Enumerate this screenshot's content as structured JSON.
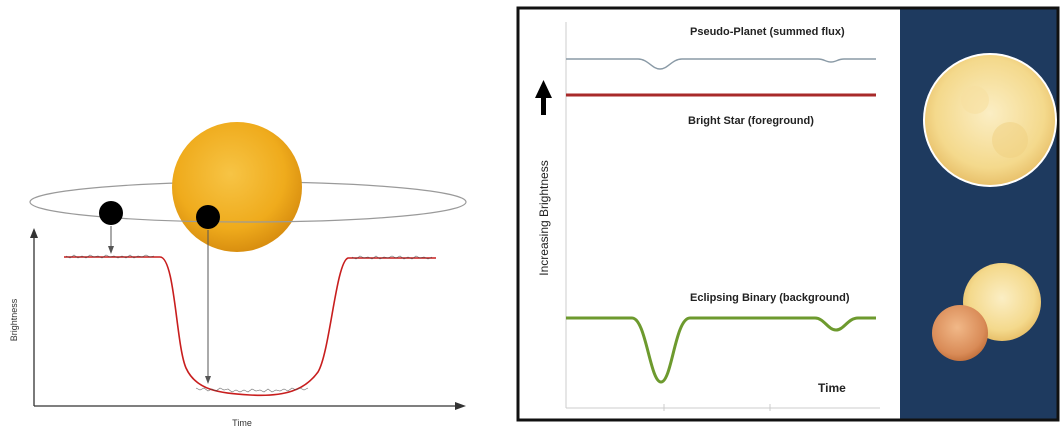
{
  "left_diagram": {
    "y_axis_label": "Brightness",
    "x_axis_label": "Time",
    "colors": {
      "star": "#f2b020",
      "planet": "#000000",
      "light_curve": "#c81e1e",
      "axis": "#333333"
    }
  },
  "right_diagram": {
    "y_axis_label": "Increasing Brightness",
    "x_axis_label": "Time",
    "curves": {
      "pseudo_planet": "Pseudo-Planet (summed flux)",
      "bright_star": "Bright Star (foreground)",
      "eclipsing_binary": "Eclipsing Binary (background)"
    },
    "colors": {
      "pseudo_planet": "#8a9aa6",
      "bright_star": "#a82a2a",
      "eclipsing_binary": "#6d9a2e",
      "panel_bg": "#1e3a5f",
      "frame": "#111111"
    }
  }
}
